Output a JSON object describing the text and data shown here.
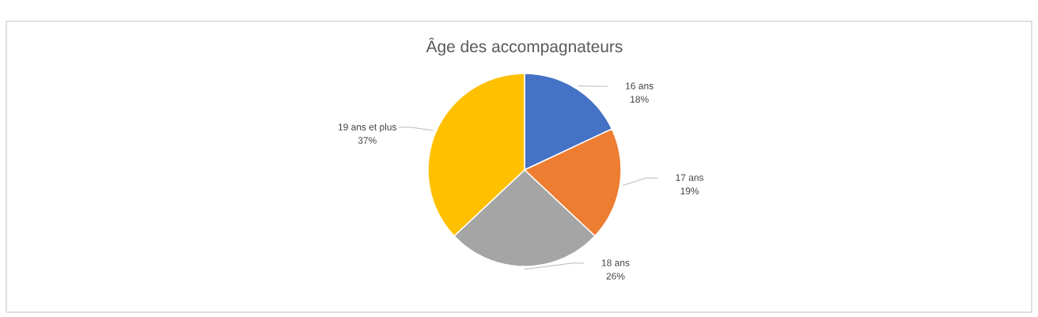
{
  "chart_data": {
    "type": "pie",
    "title": "Âge des accompagnateurs",
    "categories": [
      "16 ans",
      "17 ans",
      "18 ans",
      "19 ans et plus"
    ],
    "values": [
      18,
      19,
      26,
      37
    ],
    "value_labels": [
      "18%",
      "19%",
      "26%",
      "37%"
    ],
    "colors": [
      "#4472c4",
      "#ed7d31",
      "#a5a5a5",
      "#ffc000"
    ]
  }
}
